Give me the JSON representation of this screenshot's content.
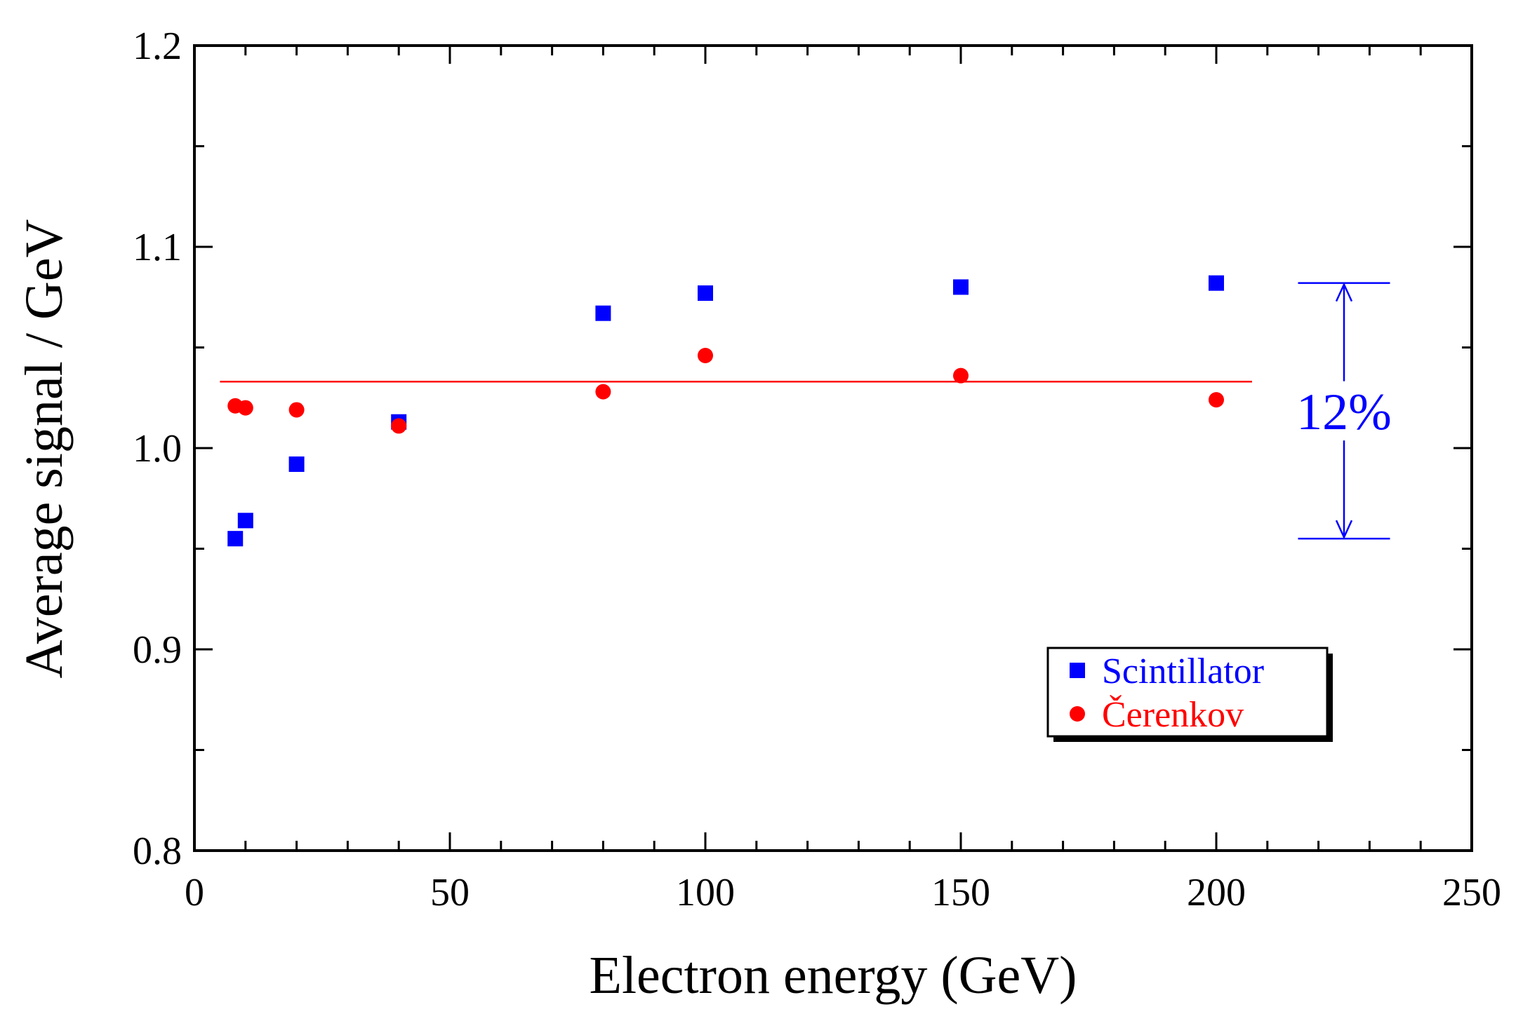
{
  "chart_data": {
    "type": "scatter",
    "title": "",
    "xlabel": "Electron energy (GeV)",
    "ylabel": "Average signal / GeV",
    "xlim": [
      0,
      250
    ],
    "ylim": [
      0.8,
      1.2
    ],
    "x_ticks": [
      "0",
      "50",
      "100",
      "150",
      "200",
      "250"
    ],
    "y_ticks": [
      "0.8",
      "0.9",
      "1.0",
      "1.1",
      "1.2"
    ],
    "x_tick_values": [
      0,
      50,
      100,
      150,
      200,
      250
    ],
    "y_tick_values": [
      0.8,
      0.9,
      1.0,
      1.1,
      1.2
    ],
    "x_minor_step": 10,
    "y_minor_step": 0.05,
    "grid": false,
    "legend_position": "lower-right",
    "series": [
      {
        "name": "Scintillator",
        "marker": "square",
        "color": "#0000ff",
        "points": [
          {
            "x": 8,
            "y": 0.955
          },
          {
            "x": 10,
            "y": 0.964
          },
          {
            "x": 20,
            "y": 0.992
          },
          {
            "x": 40,
            "y": 1.013
          },
          {
            "x": 80,
            "y": 1.067
          },
          {
            "x": 100,
            "y": 1.077
          },
          {
            "x": 150,
            "y": 1.08
          },
          {
            "x": 200,
            "y": 1.082
          }
        ]
      },
      {
        "name": "Čerenkov",
        "marker": "circle",
        "color": "#ff0000",
        "points": [
          {
            "x": 8,
            "y": 1.021
          },
          {
            "x": 10,
            "y": 1.02
          },
          {
            "x": 20,
            "y": 1.019
          },
          {
            "x": 40,
            "y": 1.011
          },
          {
            "x": 80,
            "y": 1.028
          },
          {
            "x": 100,
            "y": 1.046
          },
          {
            "x": 150,
            "y": 1.036
          },
          {
            "x": 200,
            "y": 1.024
          }
        ]
      }
    ],
    "reference_line": {
      "y": 1.033,
      "x_range": [
        5,
        207
      ],
      "color": "#ff0000"
    },
    "annotation": {
      "text": "12%",
      "color": "#0000ff",
      "x": 225,
      "x_range": [
        216,
        234
      ],
      "y_top": 1.082,
      "y_bottom": 0.955
    }
  }
}
